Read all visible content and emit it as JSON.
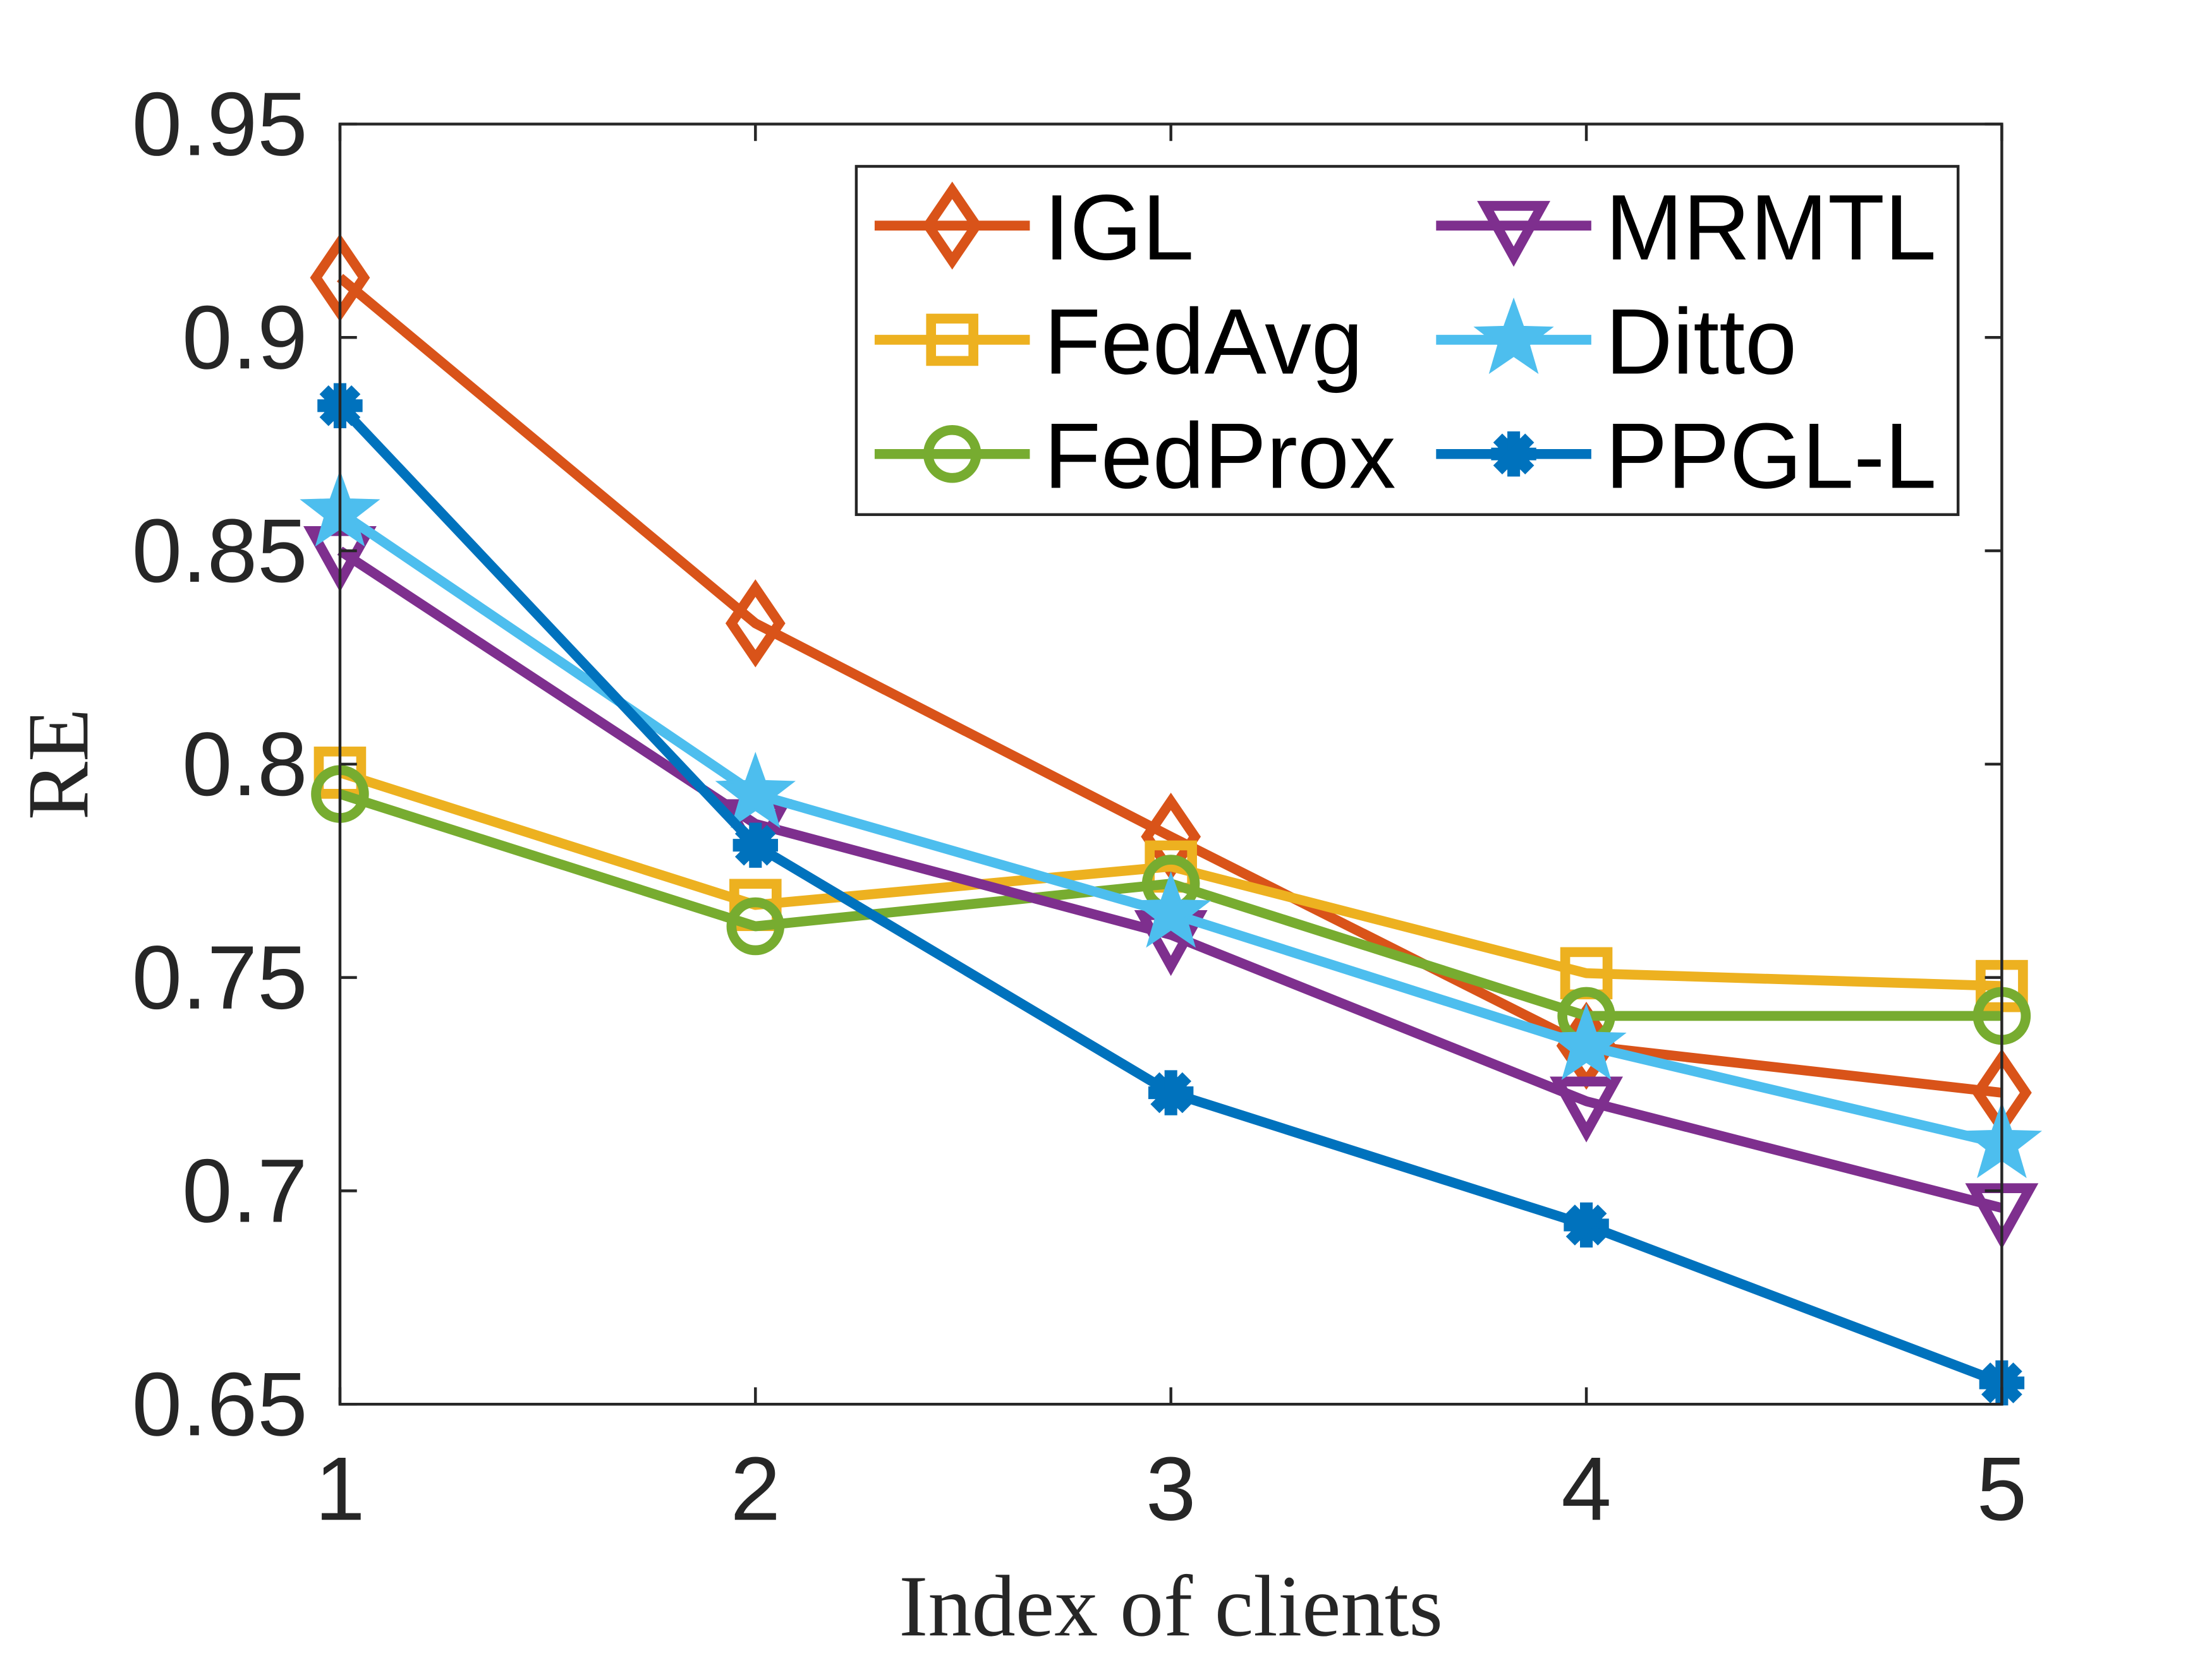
{
  "chart_data": {
    "type": "line",
    "title": "",
    "xlabel": "Index of clients",
    "ylabel": "RE",
    "x": [
      1,
      2,
      3,
      4,
      5
    ],
    "xticks": [
      "1",
      "2",
      "3",
      "4",
      "5"
    ],
    "yticks": [
      "0.65",
      "0.7",
      "0.75",
      "0.8",
      "0.85",
      "0.9",
      "0.95"
    ],
    "ylim": [
      0.65,
      0.95
    ],
    "xlim": [
      1,
      5
    ],
    "grid": false,
    "legend_position": "top-right",
    "legend_columns": 2,
    "series": [
      {
        "name": "IGL",
        "color": "#D95319",
        "marker": "diamond",
        "values": [
          0.914,
          0.833,
          0.783,
          0.734,
          0.723
        ]
      },
      {
        "name": "FedAvg",
        "color": "#EDB120",
        "marker": "square",
        "values": [
          0.798,
          0.767,
          0.776,
          0.751,
          0.748
        ]
      },
      {
        "name": "FedProx",
        "color": "#77AC30",
        "marker": "circle",
        "values": [
          0.793,
          0.762,
          0.772,
          0.741,
          0.741
        ]
      },
      {
        "name": "MRMTL",
        "color": "#7E2F8E",
        "marker": "triangle-down",
        "values": [
          0.85,
          0.786,
          0.76,
          0.721,
          0.696
        ]
      },
      {
        "name": "Ditto",
        "color": "#4DBEEE",
        "marker": "star",
        "values": [
          0.859,
          0.793,
          0.765,
          0.734,
          0.711
        ]
      },
      {
        "name": "PPGL-L",
        "color": "#0072BD",
        "marker": "asterisk",
        "values": [
          0.884,
          0.781,
          0.723,
          0.692,
          0.655
        ]
      }
    ]
  }
}
